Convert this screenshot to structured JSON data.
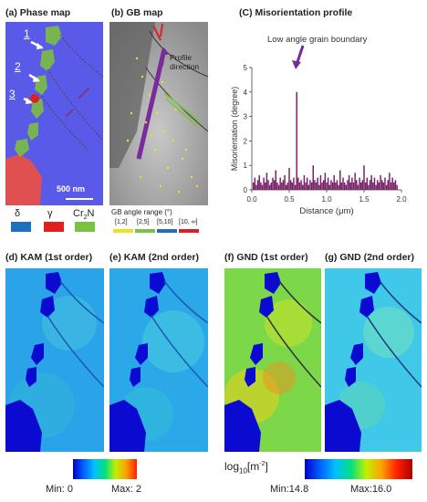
{
  "panels": {
    "a": "(a) Phase map",
    "b": "(b) GB map",
    "c": "(C) Misorientation profile",
    "d": "(d) KAM (1st order)",
    "e": "(e) KAM (2nd order)",
    "f": "(f) GND (1st order)",
    "g": "(g) GND (2nd order)"
  },
  "phase_map": {
    "scale_bar": "500 nm",
    "markers": [
      "1",
      "2",
      "3"
    ],
    "legend": [
      "δ",
      "γ",
      "Cr2N"
    ],
    "legend_colors": [
      "#1f6fbf",
      "#e02020",
      "#7cc242"
    ]
  },
  "gb_map": {
    "annotation": "Profile direction",
    "legend_title": "GB angle range (°)",
    "ranges": [
      "[1,2]",
      "[2,5]",
      "[5,10]",
      "[10, ∞]"
    ],
    "range_colors": [
      "#f0e020",
      "#7cc242",
      "#1f6fbf",
      "#e02020"
    ]
  },
  "chart_data": {
    "type": "bar",
    "title": "(C) Misorientation profile",
    "annotation": "Low angle grain boundary",
    "xlabel": "Distance (μm)",
    "ylabel": "Misorientation (degree)",
    "xlim": [
      0,
      2
    ],
    "ylim": [
      0,
      5
    ],
    "xticks": [
      "0.0",
      "0.5",
      "1.0",
      "1.5",
      "2.0"
    ],
    "yticks": [
      "0",
      "1",
      "2",
      "3",
      "4",
      "5"
    ],
    "x": [
      0.02,
      0.04,
      0.06,
      0.08,
      0.1,
      0.12,
      0.14,
      0.16,
      0.18,
      0.2,
      0.22,
      0.24,
      0.26,
      0.28,
      0.3,
      0.32,
      0.34,
      0.36,
      0.38,
      0.4,
      0.42,
      0.44,
      0.46,
      0.48,
      0.5,
      0.52,
      0.54,
      0.56,
      0.58,
      0.6,
      0.62,
      0.64,
      0.66,
      0.68,
      0.7,
      0.72,
      0.74,
      0.76,
      0.78,
      0.8,
      0.82,
      0.84,
      0.86,
      0.88,
      0.9,
      0.92,
      0.94,
      0.96,
      0.98,
      1.0,
      1.02,
      1.04,
      1.06,
      1.08,
      1.1,
      1.12,
      1.14,
      1.16,
      1.18,
      1.2,
      1.22,
      1.24,
      1.26,
      1.28,
      1.3,
      1.32,
      1.34,
      1.36,
      1.38,
      1.4,
      1.42,
      1.44,
      1.46,
      1.48,
      1.5,
      1.52,
      1.54,
      1.56,
      1.58,
      1.6,
      1.62,
      1.64,
      1.66,
      1.68,
      1.7,
      1.72,
      1.74,
      1.76,
      1.78,
      1.8,
      1.82,
      1.84,
      1.86,
      1.88,
      1.9,
      1.92,
      1.94
    ],
    "values": [
      0.3,
      0.5,
      0.2,
      0.4,
      0.6,
      0.3,
      0.2,
      0.5,
      0.3,
      0.7,
      0.4,
      0.2,
      0.3,
      0.5,
      0.4,
      0.8,
      0.3,
      0.2,
      0.5,
      0.3,
      0.4,
      0.6,
      0.2,
      0.3,
      0.9,
      0.4,
      0.3,
      0.5,
      0.2,
      4.0,
      0.5,
      0.3,
      0.4,
      0.2,
      0.6,
      0.3,
      0.5,
      0.2,
      0.4,
      0.3,
      1.0,
      0.4,
      0.3,
      0.5,
      0.2,
      0.6,
      0.3,
      0.4,
      0.7,
      0.3,
      0.5,
      0.2,
      0.4,
      0.3,
      0.6,
      0.3,
      0.4,
      0.2,
      0.8,
      0.3,
      0.5,
      0.3,
      0.2,
      0.4,
      0.6,
      0.3,
      0.5,
      0.3,
      0.7,
      0.4,
      0.2,
      0.5,
      0.3,
      0.4,
      1.0,
      0.3,
      0.5,
      0.2,
      0.4,
      0.6,
      0.3,
      0.5,
      0.2,
      0.4,
      0.3,
      0.6,
      0.4,
      0.3,
      0.5,
      0.2,
      0.4,
      0.7,
      0.3,
      0.5,
      0.3,
      0.4,
      0.2
    ],
    "color": "#7a1f66"
  },
  "colorbars": {
    "kam": {
      "min_label": "Min: 0",
      "max_label": "Max: 2"
    },
    "gnd": {
      "unit": "log10[m-2]",
      "min_label": "Min:14.8",
      "max_label": "Max:16.0"
    }
  }
}
